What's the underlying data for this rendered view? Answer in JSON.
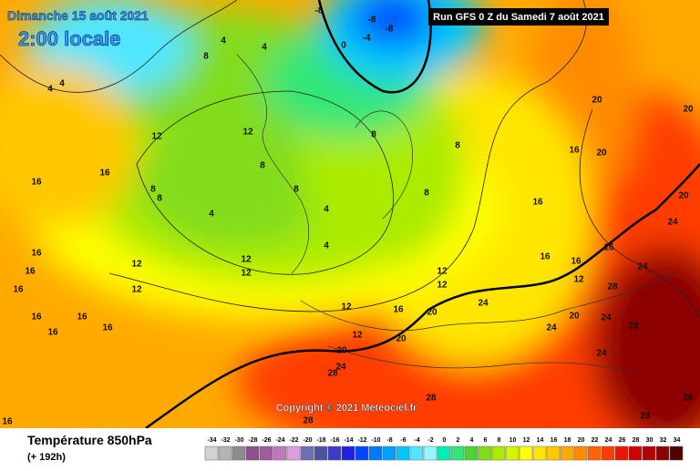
{
  "header": {
    "date": "Dimanche 15 août 2021",
    "time": "2:00 locale",
    "run": "Run GFS 0 Z du Samedi 7 août 2021"
  },
  "copyright": "Copyright © 2021 Meteociel.fr",
  "footer": {
    "title": "Température 850hPa",
    "lead": "(+ 192h)"
  },
  "legend": {
    "values": [
      -34,
      -32,
      -30,
      -28,
      -26,
      -24,
      -22,
      -20,
      -18,
      -16,
      -14,
      -12,
      -10,
      -8,
      -6,
      -4,
      -2,
      0,
      2,
      4,
      6,
      8,
      10,
      12,
      14,
      16,
      18,
      20,
      22,
      24,
      26,
      28,
      30,
      32,
      34
    ],
    "colors": [
      "#d2d2d2",
      "#b4b4b4",
      "#8c8c8c",
      "#8c508c",
      "#a05aa0",
      "#be78be",
      "#dca0dc",
      "#6e6eb4",
      "#5050a0",
      "#3c3cc8",
      "#1e1ee6",
      "#0046ff",
      "#0078ff",
      "#00a0ff",
      "#00c8ff",
      "#50e6ff",
      "#96f5ff",
      "#00f0b4",
      "#32e678",
      "#50d232",
      "#82dc1e",
      "#aaeb00",
      "#d2f500",
      "#ffff00",
      "#ffe600",
      "#ffc800",
      "#ffaa00",
      "#ff8c00",
      "#ff6400",
      "#ff3c00",
      "#f01400",
      "#d20000",
      "#b40000",
      "#8c0000",
      "#500000"
    ]
  },
  "contour_labels": [
    4,
    4,
    12,
    16,
    16,
    16,
    16,
    16,
    16,
    16,
    16,
    16,
    12,
    12,
    8,
    8,
    4,
    12,
    12,
    12,
    8,
    8,
    4,
    4,
    8,
    8,
    8,
    16,
    16,
    16,
    12,
    16,
    24,
    24,
    20,
    20,
    16,
    20,
    20,
    24,
    24,
    20,
    24,
    28,
    28,
    24,
    12,
    12,
    16,
    20,
    20,
    12,
    12,
    20,
    24,
    28,
    28,
    28,
    28,
    28,
    16,
    -8,
    -8,
    -8,
    -4,
    0,
    4,
    4,
    8
  ]
}
